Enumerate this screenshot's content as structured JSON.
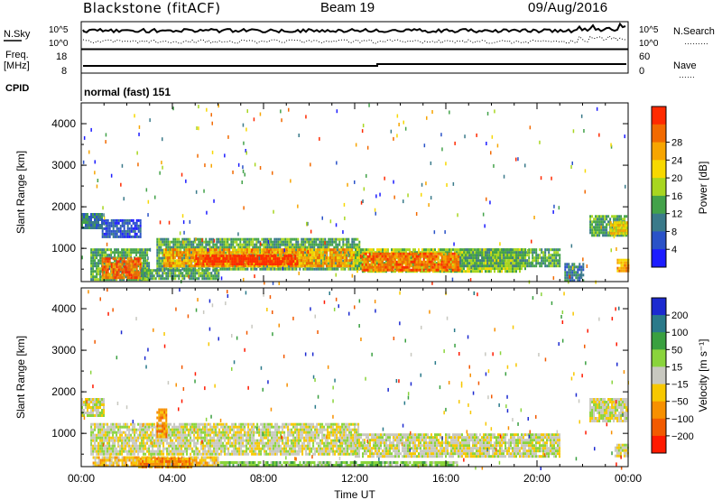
{
  "header": {
    "title": "Blackstone (fitACF)",
    "beam": "Beam 19",
    "date": "09/Aug/2016"
  },
  "strip_panels": {
    "noise": {
      "left_label": "N.Sky",
      "right_label": "N.Search",
      "right_legend_mark": "………",
      "left_ticks": [
        "10^5",
        "10^0"
      ],
      "right_ticks": [
        "10^5",
        "10^0"
      ]
    },
    "freq": {
      "left_label_1": "Freq.",
      "left_label_2": "[MHz]",
      "right_label": "Nave",
      "right_legend_mark": "……",
      "left_ticks": [
        "18",
        "8"
      ],
      "right_ticks": [
        "60",
        "0"
      ]
    },
    "cpid": {
      "label": "CPID",
      "text": "normal (fast) 151"
    }
  },
  "chart_data": [
    {
      "type": "heatmap",
      "name": "power",
      "xlabel": "",
      "ylabel": "Slant Range [km]",
      "y_ticks": [
        1000,
        2000,
        3000,
        4000
      ],
      "y_tick_labels": [
        "1000",
        "2000",
        "3000",
        "4000"
      ],
      "ylim": [
        200,
        4500
      ],
      "xlim_hours": [
        0,
        24
      ],
      "colorbar": {
        "label": "Power [dB]",
        "ticks": [
          "4",
          "8",
          "12",
          "16",
          "20",
          "24",
          "28"
        ],
        "colors": [
          "#1c1cff",
          "#2a52c8",
          "#3a7a8a",
          "#43a24a",
          "#a8d620",
          "#f7d800",
          "#f7a500",
          "#f26a00",
          "#ff2a00"
        ]
      },
      "regions": [
        {
          "t0": 0.0,
          "t1": 0.9,
          "r0": 1500,
          "r1": 1850,
          "level": 2
        },
        {
          "t0": 0.9,
          "t1": 2.6,
          "r0": 1250,
          "r1": 1700,
          "level": 1
        },
        {
          "t0": 0.4,
          "t1": 3.0,
          "r0": 250,
          "r1": 1000,
          "level": 3
        },
        {
          "t0": 0.9,
          "t1": 2.6,
          "r0": 300,
          "r1": 780,
          "level": 7
        },
        {
          "t0": 2.6,
          "t1": 3.3,
          "r0": 250,
          "r1": 500,
          "level": 3
        },
        {
          "t0": 3.3,
          "t1": 12.2,
          "r0": 500,
          "r1": 1250,
          "level": 3
        },
        {
          "t0": 3.6,
          "t1": 12.0,
          "r0": 550,
          "r1": 1000,
          "level": 6
        },
        {
          "t0": 5.0,
          "t1": 9.5,
          "r0": 600,
          "r1": 850,
          "level": 8
        },
        {
          "t0": 3.3,
          "t1": 6.0,
          "r0": 250,
          "r1": 500,
          "level": 3
        },
        {
          "t0": 12.0,
          "t1": 19.5,
          "r0": 450,
          "r1": 1000,
          "level": 4
        },
        {
          "t0": 12.3,
          "t1": 16.6,
          "r0": 480,
          "r1": 900,
          "level": 7
        },
        {
          "t0": 16.6,
          "t1": 21.0,
          "r0": 600,
          "r1": 1000,
          "level": 3
        },
        {
          "t0": 21.2,
          "t1": 22.0,
          "r0": 200,
          "r1": 650,
          "level": 2
        },
        {
          "t0": 22.3,
          "t1": 23.9,
          "r0": 1300,
          "r1": 1800,
          "level": 3
        },
        {
          "t0": 23.2,
          "t1": 23.95,
          "r0": 1350,
          "r1": 1650,
          "level": 5
        },
        {
          "t0": 23.5,
          "t1": 24.0,
          "r0": 450,
          "r1": 750,
          "level": 6
        }
      ]
    },
    {
      "type": "heatmap",
      "name": "velocity",
      "xlabel": "Time UT",
      "ylabel": "Slant Range [km]",
      "x_tick_labels": [
        "00:00",
        "04:00",
        "08:00",
        "12:00",
        "16:00",
        "20:00",
        "00:00"
      ],
      "y_ticks": [
        1000,
        2000,
        3000,
        4000
      ],
      "y_tick_labels": [
        "1000",
        "2000",
        "3000",
        "4000"
      ],
      "ylim": [
        200,
        4500
      ],
      "xlim_hours": [
        0,
        24
      ],
      "colorbar": {
        "label": "Velocity [m s⁻¹]",
        "ticks": [
          "200",
          "100",
          "50",
          "15",
          "−15",
          "−50",
          "−100",
          "−200"
        ],
        "colors": [
          "#1c2ad0",
          "#2a7a8a",
          "#3aa040",
          "#8ad43c",
          "#c8c8c0",
          "#f7c800",
          "#f79000",
          "#f25a00",
          "#ff1a00"
        ]
      },
      "regions": [
        {
          "t0": 0.0,
          "t1": 1.0,
          "r0": 1400,
          "r1": 1850,
          "level": 4
        },
        {
          "t0": 0.4,
          "t1": 12.2,
          "r0": 500,
          "r1": 1250,
          "level": 4
        },
        {
          "t0": 12.0,
          "t1": 21.0,
          "r0": 450,
          "r1": 1000,
          "level": 4
        },
        {
          "t0": 0.5,
          "t1": 6.0,
          "r0": 200,
          "r1": 450,
          "level": 5
        },
        {
          "t0": 2.5,
          "t1": 4.8,
          "r0": 200,
          "r1": 420,
          "level": 6
        },
        {
          "t0": 6.0,
          "t1": 16.5,
          "r0": 200,
          "r1": 330,
          "level": 3
        },
        {
          "t0": 3.3,
          "t1": 3.7,
          "r0": 900,
          "r1": 1600,
          "level": 6
        },
        {
          "t0": 22.3,
          "t1": 23.9,
          "r0": 1300,
          "r1": 1850,
          "level": 4
        },
        {
          "t0": 23.4,
          "t1": 24.0,
          "r0": 450,
          "r1": 750,
          "level": 4
        }
      ]
    }
  ]
}
